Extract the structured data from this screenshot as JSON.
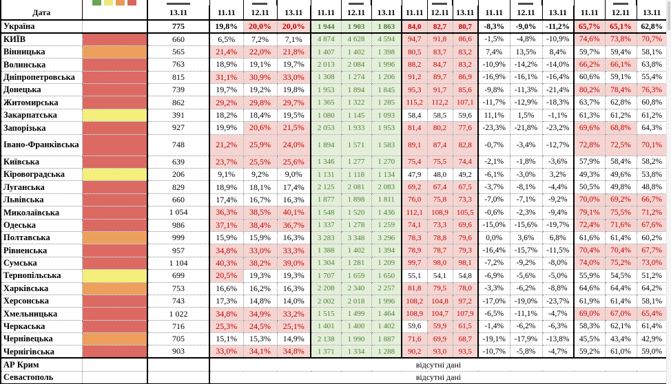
{
  "table": {
    "date_header": "Дата",
    "first_col_date": "13.11",
    "group_dates": [
      "11.11",
      "12.11",
      "13.11"
    ],
    "group_count": 5,
    "missing_data_text": "відсутні дані",
    "legend_swatches": [
      "#66a551",
      "#ece87a",
      "#e89a55",
      "#d96459"
    ],
    "swatch_colors": {
      "red": "#dc6a63",
      "orange": "#eca05b",
      "yellow": "#f3ef7a"
    },
    "highlight": {
      "pink_bg": "#f5d4d1",
      "pink_text": "#c00000",
      "green_bg": "#e3efd9",
      "green_text": "#4f7d3a",
      "header_bg": "#c7daee"
    },
    "thresholds": {
      "g1_pink_min": 20,
      "g3_pink_min": 59.7,
      "g5_pink_min": 65
    },
    "rows": [
      {
        "name": "Україна",
        "total": true,
        "swatch": null,
        "d13": "775",
        "g1": [
          "19,8%",
          "20,0%",
          "20,0%"
        ],
        "g2": [
          "1 944",
          "1 903",
          "1 863"
        ],
        "g3": [
          "84,0",
          "82,7",
          "80,7"
        ],
        "g4": [
          "-8,3%",
          "-9,0%",
          "-11,2%"
        ],
        "g5": [
          "65,7%",
          "65,1%",
          "62,8%"
        ]
      },
      {
        "name": "КИЇВ",
        "swatch": "red",
        "d13": "660",
        "g1": [
          "6,5%",
          "7,2%",
          "7,1%"
        ],
        "g2": [
          "4 874",
          "4 628",
          "4 594"
        ],
        "g3": [
          "94,7",
          "91,8",
          "86,6"
        ],
        "g4": [
          "-1,5%",
          "-4,8%",
          "-10,9%"
        ],
        "g5": [
          "74,6%",
          "73,8%",
          "70,7%"
        ]
      },
      {
        "name": "Вінницька",
        "swatch": "orange",
        "d13": "565",
        "g1": [
          "21,4%",
          "22,0%",
          "21,8%"
        ],
        "g2": [
          "1 407",
          "1 402",
          "1 398"
        ],
        "g3": [
          "80,5",
          "83,7",
          "83,2"
        ],
        "g4": [
          "7,4%",
          "13,5%",
          "8,4%"
        ],
        "g5": [
          "59,7%",
          "59,4%",
          "58,1%"
        ]
      },
      {
        "name": "Волинська",
        "swatch": "red",
        "d13": "763",
        "g1": [
          "18,9%",
          "19,1%",
          "19,7%"
        ],
        "g2": [
          "2 013",
          "2 084",
          "1 996"
        ],
        "g3": [
          "88,2",
          "84,7",
          "83,2"
        ],
        "g4": [
          "-10,9%",
          "-14,2%",
          "-14,0%"
        ],
        "g5": [
          "66,2%",
          "66,1%",
          "63,8%"
        ]
      },
      {
        "name": "Дніпропетровська",
        "swatch": "red",
        "d13": "815",
        "g1": [
          "31,1%",
          "30,9%",
          "33,0%"
        ],
        "g2": [
          "1 308",
          "1 274",
          "1 206"
        ],
        "g3": [
          "91,2",
          "89,7",
          "86,9"
        ],
        "g4": [
          "-16,9%",
          "-16,1%",
          "-16,4%"
        ],
        "g5": [
          "60,6%",
          "59,1%",
          "55,4%"
        ]
      },
      {
        "name": "Донецька",
        "swatch": "red",
        "d13": "739",
        "g1": [
          "19,7%",
          "19,2%",
          "19,8%"
        ],
        "g2": [
          "1 953",
          "1 894",
          "1 845"
        ],
        "g3": [
          "95,3",
          "91,7",
          "85,6"
        ],
        "g4": [
          "-9,8%",
          "-11,3%",
          "-21,4%"
        ],
        "g5": [
          "80,2%",
          "78,4%",
          "76,3%"
        ]
      },
      {
        "name": "Житомирська",
        "swatch": "red",
        "d13": "862",
        "g1": [
          "29,2%",
          "29,8%",
          "29,7%"
        ],
        "g2": [
          "1 365",
          "1 322",
          "1 285"
        ],
        "g3": [
          "115,2",
          "112,2",
          "107,1"
        ],
        "g4": [
          "-11,7%",
          "-12,9%",
          "-18,3%"
        ],
        "g5": [
          "63,7%",
          "62,8%",
          "60,8%"
        ]
      },
      {
        "name": "Закарпатська",
        "swatch": "yellow",
        "d13": "391",
        "g1": [
          "18,2%",
          "18,4%",
          "19,5%"
        ],
        "g2": [
          "1 080",
          "1 145",
          "1 093"
        ],
        "g3": [
          "58,4",
          "58,5",
          "59,6"
        ],
        "g4": [
          "11,1%",
          "1,5%",
          "-1,1%"
        ],
        "g5": [
          "61,3%",
          "61,2%",
          "61,2%"
        ]
      },
      {
        "name": "Запорізька",
        "swatch": "red",
        "d13": "927",
        "g1": [
          "19,9%",
          "20,6%",
          "21,5%"
        ],
        "g2": [
          "2 053",
          "1 933",
          "1 953"
        ],
        "g3": [
          "81,4",
          "80,2",
          "77,6"
        ],
        "g4": [
          "-23,3%",
          "-21,8%",
          "-23,2%"
        ],
        "g5": [
          "69,6%",
          "68,8%",
          "64,3%"
        ]
      },
      {
        "name": "Івано-Франківська",
        "dbl": true,
        "swatch": "red",
        "d13": "748",
        "g1": [
          "21,2%",
          "25,9%",
          "24,0%"
        ],
        "g2": [
          "1 894",
          "1 571",
          "1 583"
        ],
        "g3": [
          "89,1",
          "87,4",
          "82,8"
        ],
        "g4": [
          "-0,7%",
          "-3,4%",
          "-12,7%"
        ],
        "g5": [
          "72,8%",
          "72,5%",
          "70,1%"
        ]
      },
      {
        "name": "Київська",
        "swatch": "red",
        "d13": "639",
        "g1": [
          "23,7%",
          "25,5%",
          "25,6%"
        ],
        "g2": [
          "1 346",
          "1 277",
          "1 270"
        ],
        "g3": [
          "75,4",
          "75,5",
          "74,4"
        ],
        "g4": [
          "-2,1%",
          "-1,8%",
          "-3,6%"
        ],
        "g5": [
          "57,9%",
          "58,4%",
          "58,2%"
        ]
      },
      {
        "name": "Кіровоградська",
        "swatch": "yellow",
        "d13": "206",
        "g1": [
          "9,1%",
          "9,2%",
          "9,0%"
        ],
        "g2": [
          "1 131",
          "1 118",
          "1 134"
        ],
        "g3": [
          "47,9",
          "48,0",
          "49,2"
        ],
        "g4": [
          "-6,1%",
          "-3,0%",
          "3,2%"
        ],
        "g5": [
          "49,3%",
          "49,6%",
          "53,8%"
        ]
      },
      {
        "name": "Луганська",
        "swatch": "red",
        "d13": "829",
        "g1": [
          "18,9%",
          "18,1%",
          "17,4%"
        ],
        "g2": [
          "2 125",
          "2 081",
          "2 083"
        ],
        "g3": [
          "69,2",
          "67,4",
          "67,5"
        ],
        "g4": [
          "-3,7%",
          "-8,1%",
          "-4,4%"
        ],
        "g5": [
          "50,5%",
          "49,8%",
          "48,8%"
        ]
      },
      {
        "name": "Львівська",
        "swatch": "red",
        "d13": "660",
        "g1": [
          "17,4%",
          "16,7%",
          "16,3%"
        ],
        "g2": [
          "1 877",
          "1 898",
          "1 811"
        ],
        "g3": [
          "76,0",
          "75,8",
          "73,3"
        ],
        "g4": [
          "-7,0%",
          "-7,1%",
          "-9,2%"
        ],
        "g5": [
          "70,0%",
          "69,2%",
          "66,7%"
        ]
      },
      {
        "name": "Миколаївська",
        "swatch": "red",
        "d13": "1 054",
        "g1": [
          "36,3%",
          "38,5%",
          "40,1%"
        ],
        "g2": [
          "1 548",
          "1 520",
          "1 436"
        ],
        "g3": [
          "112,1",
          "108,9",
          "105,5"
        ],
        "g4": [
          "-0,6%",
          "-2,3%",
          "-9,4%"
        ],
        "g5": [
          "79,1%",
          "75,5%",
          "71,2%"
        ]
      },
      {
        "name": "Одеська",
        "swatch": "red",
        "d13": "986",
        "g1": [
          "37,1%",
          "38,4%",
          "36,7%"
        ],
        "g2": [
          "1 337",
          "1 278",
          "1 259"
        ],
        "g3": [
          "74,1",
          "73,3",
          "69,6"
        ],
        "g4": [
          "-15,0%",
          "-15,6%",
          "-19,7%"
        ],
        "g5": [
          "72,4%",
          "71,6%",
          "67,6%"
        ]
      },
      {
        "name": "Полтавська",
        "swatch": "orange",
        "d13": "999",
        "g1": [
          "15,9%",
          "15,9%",
          "16,3%"
        ],
        "g2": [
          "3 283",
          "3 348",
          "3 296"
        ],
        "g3": [
          "78,3",
          "78,8",
          "79,6"
        ],
        "g4": [
          "0,0%",
          "3,6%",
          "6,8%"
        ],
        "g5": [
          "61,6%",
          "61,4%",
          "60,2%"
        ]
      },
      {
        "name": "Рівненська",
        "swatch": "red",
        "d13": "957",
        "g1": [
          "34,8%",
          "33,0%",
          "33,3%"
        ],
        "g2": [
          "1 388",
          "1 402",
          "1 394"
        ],
        "g3": [
          "78,9",
          "78,7",
          "79,3"
        ],
        "g4": [
          "-16,4%",
          "-15,7%",
          "-11,5%"
        ],
        "g5": [
          "70,4%",
          "70,4%",
          "67,7%"
        ]
      },
      {
        "name": "Сумська",
        "swatch": "red",
        "d13": "1 104",
        "g1": [
          "40,3%",
          "38,2%",
          "39,0%"
        ],
        "g2": [
          "1 304",
          "1 281",
          "1 209"
        ],
        "g3": [
          "99,7",
          "98,0",
          "98,1"
        ],
        "g4": [
          "-7,2%",
          "-9,2%",
          "-8,0%"
        ],
        "g5": [
          "74,0%",
          "75,2%",
          "73,0%"
        ]
      },
      {
        "name": "Тернопільська",
        "swatch": "yellow",
        "d13": "699",
        "g1": [
          "20,5%",
          "19,3%",
          "19,3%"
        ],
        "g2": [
          "1 707",
          "1 659",
          "1 650"
        ],
        "g3": [
          "55,1",
          "54,1",
          "54,8"
        ],
        "g4": [
          "-6,9%",
          "-5,6%",
          "-5,0%"
        ],
        "g5": [
          "55,9%",
          "54,5%",
          "51,2%"
        ]
      },
      {
        "name": "Харківська",
        "swatch": "orange",
        "d13": "753",
        "g1": [
          "16,6%",
          "16,2%",
          "16,3%"
        ],
        "g2": [
          "2 208",
          "2 340",
          "2 257"
        ],
        "g3": [
          "81,8",
          "79,5",
          "78,0"
        ],
        "g4": [
          "-3,3%",
          "-6,2%",
          "-8,8%"
        ],
        "g5": [
          "64,6%",
          "64,4%",
          "64,2%"
        ]
      },
      {
        "name": "Херсонська",
        "swatch": "red",
        "d13": "743",
        "g1": [
          "17,3%",
          "14,8%",
          "14,0%"
        ],
        "g2": [
          "2 002",
          "2 018",
          "1 996"
        ],
        "g3": [
          "108,2",
          "104,8",
          "97,2"
        ],
        "g4": [
          "-17,0%",
          "-19,0%",
          "-23,7%"
        ],
        "g5": [
          "61,9%",
          "61,4%",
          "58,1%"
        ]
      },
      {
        "name": "Хмельницька",
        "swatch": "red",
        "d13": "1 022",
        "g1": [
          "34,8%",
          "34,9%",
          "33,2%"
        ],
        "g2": [
          "1 515",
          "1 499",
          "1 464"
        ],
        "g3": [
          "108,9",
          "104,7",
          "107,9"
        ],
        "g4": [
          "-6,5%",
          "-11,1%",
          "-4,7%"
        ],
        "g5": [
          "69,0%",
          "67,0%",
          "65,4%"
        ]
      },
      {
        "name": "Черкаська",
        "swatch": "red",
        "d13": "716",
        "g1": [
          "25,3%",
          "24,5%",
          "25,1%"
        ],
        "g2": [
          "1 401",
          "1 400",
          "1 402"
        ],
        "g3": [
          "59,6",
          "59,9",
          "61,5"
        ],
        "g4": [
          "-1,4%",
          "-6,2%",
          "-6,3%"
        ],
        "g5": [
          "58,3%",
          "62,1%",
          "61,4%"
        ]
      },
      {
        "name": "Чернівецька",
        "swatch": "orange",
        "d13": "705",
        "g1": [
          "15,1%",
          "15,3%",
          "14,9%"
        ],
        "g2": [
          "2 138",
          "1 990",
          "1 887"
        ],
        "g3": [
          "71,6",
          "69,9",
          "68,7"
        ],
        "g4": [
          "-19,1%",
          "-17,9%",
          "-13,8%"
        ],
        "g5": [
          "45,5%",
          "43,4%",
          "42,9%"
        ]
      },
      {
        "name": "Чернігівська",
        "swatch": "red",
        "d13": "903",
        "g1": [
          "33,0%",
          "34,1%",
          "34,8%"
        ],
        "g2": [
          "1 371",
          "1 334",
          "1 288"
        ],
        "g3": [
          "90,2",
          "93,0",
          "93,5"
        ],
        "g4": [
          "-10,7%",
          "-5,8%",
          "-4,7%"
        ],
        "g5": [
          "59,2%",
          "61,0%",
          "59,0%"
        ]
      }
    ],
    "no_data_rows": [
      {
        "name": "АР Крим"
      },
      {
        "name": "Севастополь"
      }
    ]
  }
}
